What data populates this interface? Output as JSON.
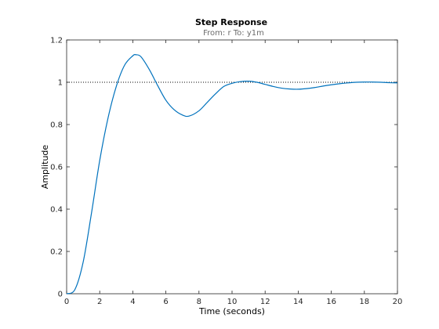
{
  "chart_data": {
    "type": "line",
    "title": "Step Response",
    "subtitle": "From: r  To: y1m",
    "xlabel": "Time (seconds)",
    "ylabel": "Amplitude",
    "xlim": [
      0,
      20
    ],
    "ylim": [
      0,
      1.2
    ],
    "xticks": [
      0,
      2,
      4,
      6,
      8,
      10,
      12,
      14,
      16,
      18,
      20
    ],
    "yticks": [
      0,
      0.2,
      0.4,
      0.6,
      0.8,
      1,
      1.2
    ],
    "xtick_labels": [
      "0",
      "2",
      "4",
      "6",
      "8",
      "10",
      "12",
      "14",
      "16",
      "18",
      "20"
    ],
    "ytick_labels": [
      "0",
      "0.2",
      "0.4",
      "0.6",
      "0.8",
      "1",
      "1.2"
    ],
    "grid": false,
    "reference_line": {
      "y": 1,
      "style": "dotted",
      "color": "#000000"
    },
    "series": [
      {
        "color": "#0072bd",
        "x": [
          0,
          0.5,
          1,
          1.5,
          2,
          2.5,
          3,
          3.5,
          4,
          4.2,
          4.5,
          5,
          5.5,
          6,
          6.5,
          7,
          7.4,
          8,
          8.5,
          9,
          9.5,
          10,
          10.5,
          11,
          11.5,
          12,
          12.5,
          13,
          13.5,
          14,
          14.5,
          15,
          15.5,
          16,
          16.5,
          17,
          17.5,
          18,
          18.5,
          19,
          19.5,
          20
        ],
        "y": [
          0,
          0.02,
          0.15,
          0.38,
          0.63,
          0.83,
          0.98,
          1.08,
          1.125,
          1.13,
          1.12,
          1.06,
          0.985,
          0.915,
          0.87,
          0.845,
          0.84,
          0.865,
          0.905,
          0.945,
          0.98,
          0.995,
          1.003,
          1.005,
          1.0,
          0.99,
          0.98,
          0.972,
          0.968,
          0.967,
          0.97,
          0.975,
          0.982,
          0.988,
          0.993,
          0.997,
          1.0,
          1.001,
          1.001,
          1.0,
          0.998,
          0.997
        ]
      }
    ]
  },
  "colors": {
    "line": "#0072bd",
    "axes": "#262626",
    "subtitle": "#6b6b6b"
  }
}
